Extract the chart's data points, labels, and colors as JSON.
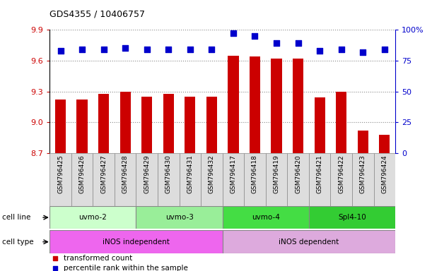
{
  "title": "GDS4355 / 10406757",
  "samples": [
    "GSM796425",
    "GSM796426",
    "GSM796427",
    "GSM796428",
    "GSM796429",
    "GSM796430",
    "GSM796431",
    "GSM796432",
    "GSM796417",
    "GSM796418",
    "GSM796419",
    "GSM796420",
    "GSM796421",
    "GSM796422",
    "GSM796423",
    "GSM796424"
  ],
  "bar_values": [
    9.22,
    9.22,
    9.28,
    9.3,
    9.25,
    9.28,
    9.25,
    9.25,
    9.65,
    9.64,
    9.62,
    9.62,
    9.24,
    9.3,
    8.92,
    8.88
  ],
  "dot_values": [
    83,
    84,
    84,
    85,
    84,
    84,
    84,
    84,
    97,
    95,
    89,
    89,
    83,
    84,
    82,
    84
  ],
  "ylim_left": [
    8.7,
    9.9
  ],
  "ylim_right": [
    0,
    100
  ],
  "yticks_left": [
    8.7,
    9.0,
    9.3,
    9.6,
    9.9
  ],
  "yticks_right": [
    0,
    25,
    50,
    75,
    100
  ],
  "bar_color": "#cc0000",
  "dot_color": "#0000cc",
  "dot_size": 30,
  "cell_line_groups": [
    {
      "label": "uvmo-2",
      "start": 0,
      "end": 4,
      "color": "#ccffcc"
    },
    {
      "label": "uvmo-3",
      "start": 4,
      "end": 8,
      "color": "#99ee99"
    },
    {
      "label": "uvmo-4",
      "start": 8,
      "end": 12,
      "color": "#44dd44"
    },
    {
      "label": "Spl4-10",
      "start": 12,
      "end": 16,
      "color": "#33cc33"
    }
  ],
  "cell_type_groups": [
    {
      "label": "iNOS independent",
      "start": 0,
      "end": 8,
      "color": "#ee66ee"
    },
    {
      "label": "iNOS dependent",
      "start": 8,
      "end": 16,
      "color": "#ddaadd"
    }
  ],
  "cell_line_label": "cell line",
  "cell_type_label": "cell type",
  "legend_bar_label": "transformed count",
  "legend_dot_label": "percentile rank within the sample",
  "grid_color": "#888888",
  "bg_color": "#ffffff",
  "tick_label_color_left": "#cc0000",
  "tick_label_color_right": "#0000cc",
  "spine_color": "#000000",
  "xtick_bg_color": "#dddddd",
  "xtick_border_color": "#888888"
}
